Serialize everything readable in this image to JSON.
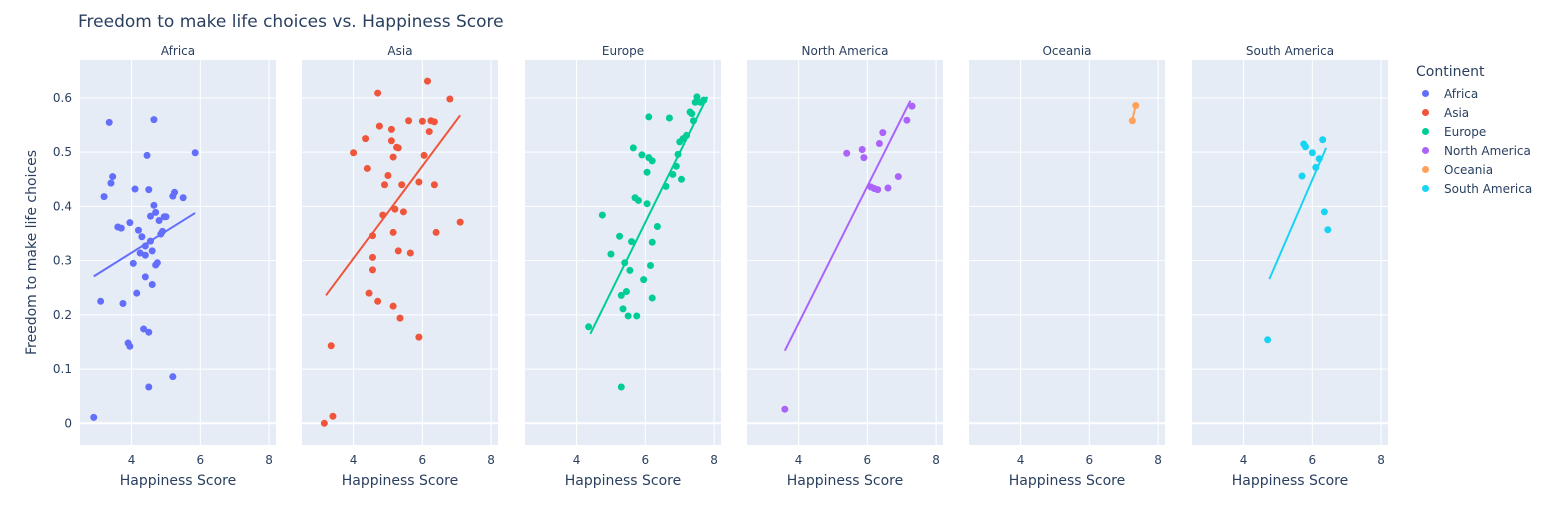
{
  "chart_data": {
    "type": "scatter",
    "title": "Freedom to make life choices vs. Happiness Score",
    "xlabel": "Happiness Score",
    "ylabel": "Freedom to make life choices",
    "xlim": [
      2.5,
      8.2
    ],
    "ylim": [
      -0.04,
      0.67
    ],
    "x_ticks": [
      4,
      6,
      8
    ],
    "y_ticks": [
      0,
      0.1,
      0.2,
      0.3,
      0.4,
      0.5,
      0.6
    ],
    "y_tick_labels": [
      "0",
      "0.1",
      "0.2",
      "0.3",
      "0.4",
      "0.5",
      "0.6"
    ],
    "legend_title": "Continent",
    "legend_position": "right",
    "grid": true,
    "facets": [
      {
        "name": "Africa",
        "color": "#636efa",
        "trendline": [
          [
            2.9,
            0.271
          ],
          [
            5.85,
            0.388
          ]
        ],
        "points": [
          [
            2.9,
            0.011
          ],
          [
            3.1,
            0.225
          ],
          [
            3.2,
            0.418
          ],
          [
            3.35,
            0.555
          ],
          [
            3.4,
            0.443
          ],
          [
            3.45,
            0.455
          ],
          [
            3.6,
            0.362
          ],
          [
            3.7,
            0.36
          ],
          [
            3.75,
            0.221
          ],
          [
            3.9,
            0.148
          ],
          [
            3.95,
            0.142
          ],
          [
            3.95,
            0.37
          ],
          [
            4.05,
            0.295
          ],
          [
            4.1,
            0.432
          ],
          [
            4.15,
            0.24
          ],
          [
            4.2,
            0.356
          ],
          [
            4.25,
            0.314
          ],
          [
            4.3,
            0.344
          ],
          [
            4.35,
            0.174
          ],
          [
            4.4,
            0.327
          ],
          [
            4.4,
            0.27
          ],
          [
            4.4,
            0.31
          ],
          [
            4.45,
            0.494
          ],
          [
            4.5,
            0.431
          ],
          [
            4.5,
            0.168
          ],
          [
            4.5,
            0.067
          ],
          [
            4.55,
            0.382
          ],
          [
            4.55,
            0.336
          ],
          [
            4.6,
            0.256
          ],
          [
            4.6,
            0.318
          ],
          [
            4.65,
            0.402
          ],
          [
            4.65,
            0.56
          ],
          [
            4.7,
            0.389
          ],
          [
            4.7,
            0.292
          ],
          [
            4.75,
            0.296
          ],
          [
            4.8,
            0.374
          ],
          [
            4.85,
            0.349
          ],
          [
            4.9,
            0.354
          ],
          [
            4.95,
            0.381
          ],
          [
            5.0,
            0.381
          ],
          [
            5.2,
            0.419
          ],
          [
            5.2,
            0.086
          ],
          [
            5.25,
            0.426
          ],
          [
            5.5,
            0.416
          ],
          [
            5.85,
            0.499
          ]
        ]
      },
      {
        "name": "Asia",
        "color": "#ef553b",
        "trendline": [
          [
            3.2,
            0.236
          ],
          [
            7.1,
            0.568
          ]
        ],
        "points": [
          [
            3.15,
            0.0
          ],
          [
            3.35,
            0.143
          ],
          [
            3.4,
            0.013
          ],
          [
            4.0,
            0.499
          ],
          [
            4.35,
            0.525
          ],
          [
            4.4,
            0.47
          ],
          [
            4.45,
            0.24
          ],
          [
            4.55,
            0.346
          ],
          [
            4.55,
            0.306
          ],
          [
            4.55,
            0.283
          ],
          [
            4.7,
            0.609
          ],
          [
            4.7,
            0.225
          ],
          [
            4.75,
            0.548
          ],
          [
            4.85,
            0.384
          ],
          [
            4.9,
            0.44
          ],
          [
            5.0,
            0.457
          ],
          [
            5.1,
            0.542
          ],
          [
            5.1,
            0.521
          ],
          [
            5.15,
            0.491
          ],
          [
            5.15,
            0.352
          ],
          [
            5.15,
            0.216
          ],
          [
            5.2,
            0.395
          ],
          [
            5.25,
            0.509
          ],
          [
            5.3,
            0.508
          ],
          [
            5.3,
            0.318
          ],
          [
            5.35,
            0.194
          ],
          [
            5.4,
            0.44
          ],
          [
            5.45,
            0.39
          ],
          [
            5.6,
            0.558
          ],
          [
            5.65,
            0.314
          ],
          [
            5.9,
            0.445
          ],
          [
            5.9,
            0.159
          ],
          [
            6.0,
            0.557
          ],
          [
            6.05,
            0.494
          ],
          [
            6.15,
            0.631
          ],
          [
            6.2,
            0.538
          ],
          [
            6.25,
            0.558
          ],
          [
            6.35,
            0.556
          ],
          [
            6.35,
            0.44
          ],
          [
            6.4,
            0.352
          ],
          [
            6.8,
            0.598
          ],
          [
            7.1,
            0.371
          ]
        ]
      },
      {
        "name": "Europe",
        "color": "#00cc96",
        "trendline": [
          [
            4.4,
            0.165
          ],
          [
            7.8,
            0.602
          ]
        ],
        "points": [
          [
            4.35,
            0.178
          ],
          [
            4.75,
            0.384
          ],
          [
            5.0,
            0.312
          ],
          [
            5.25,
            0.345
          ],
          [
            5.3,
            0.236
          ],
          [
            5.3,
            0.067
          ],
          [
            5.35,
            0.211
          ],
          [
            5.4,
            0.296
          ],
          [
            5.45,
            0.243
          ],
          [
            5.5,
            0.198
          ],
          [
            5.55,
            0.282
          ],
          [
            5.6,
            0.335
          ],
          [
            5.65,
            0.508
          ],
          [
            5.7,
            0.416
          ],
          [
            5.75,
            0.198
          ],
          [
            5.8,
            0.411
          ],
          [
            5.9,
            0.495
          ],
          [
            5.95,
            0.265
          ],
          [
            6.05,
            0.405
          ],
          [
            6.05,
            0.463
          ],
          [
            6.1,
            0.49
          ],
          [
            6.1,
            0.565
          ],
          [
            6.15,
            0.291
          ],
          [
            6.2,
            0.334
          ],
          [
            6.2,
            0.484
          ],
          [
            6.2,
            0.231
          ],
          [
            6.35,
            0.363
          ],
          [
            6.6,
            0.437
          ],
          [
            6.7,
            0.563
          ],
          [
            6.8,
            0.459
          ],
          [
            6.9,
            0.474
          ],
          [
            6.95,
            0.496
          ],
          [
            7.0,
            0.519
          ],
          [
            7.05,
            0.45
          ],
          [
            7.1,
            0.525
          ],
          [
            7.2,
            0.531
          ],
          [
            7.3,
            0.574
          ],
          [
            7.35,
            0.571
          ],
          [
            7.4,
            0.558
          ],
          [
            7.45,
            0.592
          ],
          [
            7.5,
            0.602
          ],
          [
            7.6,
            0.592
          ],
          [
            7.7,
            0.596
          ]
        ]
      },
      {
        "name": "North America",
        "color": "#ab63fa",
        "trendline": [
          [
            3.6,
            0.134
          ],
          [
            7.25,
            0.595
          ]
        ],
        "points": [
          [
            3.6,
            0.026
          ],
          [
            5.4,
            0.498
          ],
          [
            5.85,
            0.505
          ],
          [
            5.9,
            0.49
          ],
          [
            6.1,
            0.436
          ],
          [
            6.2,
            0.433
          ],
          [
            6.3,
            0.431
          ],
          [
            6.35,
            0.516
          ],
          [
            6.45,
            0.536
          ],
          [
            6.6,
            0.434
          ],
          [
            6.9,
            0.455
          ],
          [
            7.15,
            0.559
          ],
          [
            7.3,
            0.585
          ]
        ]
      },
      {
        "name": "Oceania",
        "color": "#ffa15a",
        "trendline": [
          [
            7.25,
            0.56
          ],
          [
            7.35,
            0.586
          ]
        ],
        "points": [
          [
            7.25,
            0.558
          ],
          [
            7.35,
            0.586
          ]
        ]
      },
      {
        "name": "South America",
        "color": "#19d3f3",
        "trendline": [
          [
            4.75,
            0.266
          ],
          [
            6.4,
            0.508
          ]
        ],
        "points": [
          [
            4.7,
            0.154
          ],
          [
            5.7,
            0.456
          ],
          [
            5.75,
            0.515
          ],
          [
            5.8,
            0.51
          ],
          [
            6.0,
            0.499
          ],
          [
            6.1,
            0.472
          ],
          [
            6.2,
            0.488
          ],
          [
            6.3,
            0.523
          ],
          [
            6.35,
            0.39
          ],
          [
            6.45,
            0.357
          ]
        ]
      }
    ]
  }
}
